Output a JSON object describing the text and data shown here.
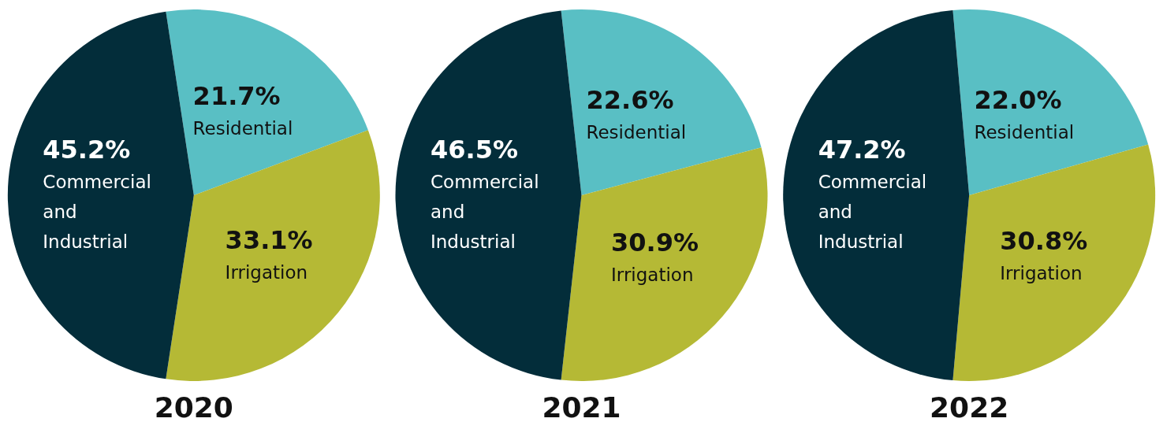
{
  "chart_data": [
    {
      "type": "pie",
      "title": "2020",
      "categories": [
        "Residential",
        "Irrigation",
        "Commercial and Industrial"
      ],
      "values": [
        21.7,
        33.1,
        45.2
      ],
      "value_labels": [
        "21.7%",
        "33.1%",
        "45.2%"
      ],
      "colors": [
        "#59bfc4",
        "#b5b935",
        "#032d3a"
      ]
    },
    {
      "type": "pie",
      "title": "2021",
      "categories": [
        "Residential",
        "Irrigation",
        "Commercial and Industrial"
      ],
      "values": [
        22.6,
        30.9,
        46.5
      ],
      "value_labels": [
        "22.6%",
        "30.9%",
        "46.5%"
      ],
      "colors": [
        "#59bfc4",
        "#b5b935",
        "#032d3a"
      ]
    },
    {
      "type": "pie",
      "title": "2022",
      "categories": [
        "Residential",
        "Irrigation",
        "Commercial and Industrial"
      ],
      "values": [
        22.0,
        30.8,
        47.2
      ],
      "value_labels": [
        "22.0%",
        "30.8%",
        "47.2%"
      ],
      "colors": [
        "#59bfc4",
        "#b5b935",
        "#032d3a"
      ]
    }
  ]
}
